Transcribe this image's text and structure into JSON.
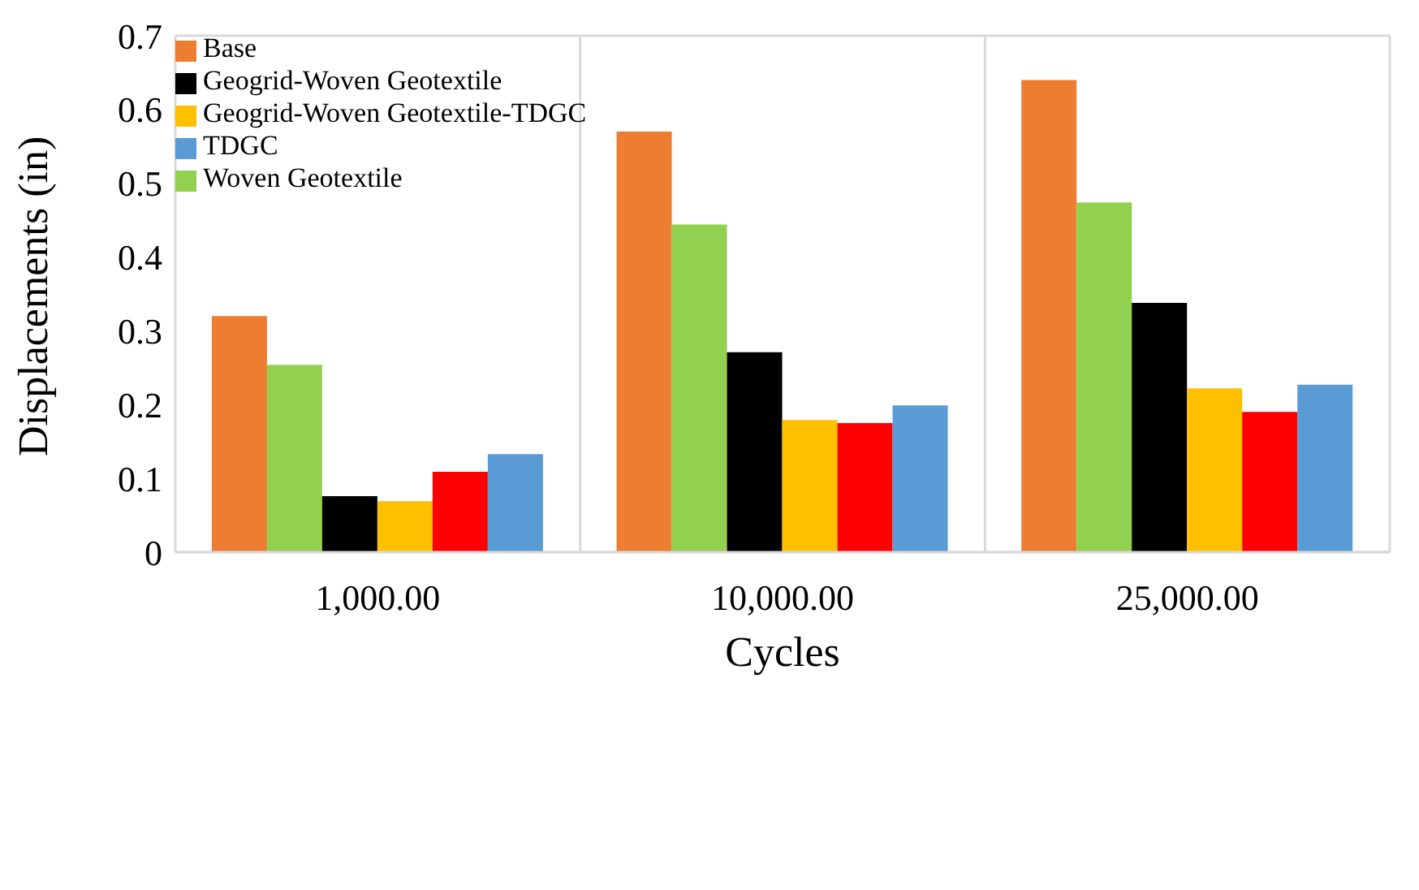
{
  "chart_data": {
    "type": "bar",
    "xlabel": "Cycles",
    "ylabel": "Displacements (in)",
    "categories": [
      "1,000.00",
      "10,000.00",
      "25,000.00"
    ],
    "series": [
      {
        "name": "Base",
        "color": "#ed7d31",
        "values": [
          0.32,
          0.57,
          0.64
        ]
      },
      {
        "name": "Woven Geotextile",
        "color": "#92d050",
        "values": [
          0.254,
          0.444,
          0.474
        ]
      },
      {
        "name": "Geogrid-Woven Geotextile",
        "color": "#000000",
        "values": [
          0.076,
          0.271,
          0.338
        ]
      },
      {
        "name": "Geogrid-Woven Geotextile-TDGC",
        "color": "#ffc000",
        "values": [
          0.069,
          0.179,
          0.222
        ]
      },
      {
        "color": "#ff0000",
        "values": [
          0.109,
          0.175,
          0.19
        ]
      },
      {
        "name": "TDGC",
        "color": "#5b9bd5",
        "values": [
          0.133,
          0.199,
          0.227
        ]
      }
    ],
    "ylim": [
      0,
      0.7
    ],
    "yticks": [
      0,
      0.1,
      0.2,
      0.3,
      0.4,
      0.5,
      0.6,
      0.7
    ],
    "grid": true,
    "legend": "top left"
  }
}
